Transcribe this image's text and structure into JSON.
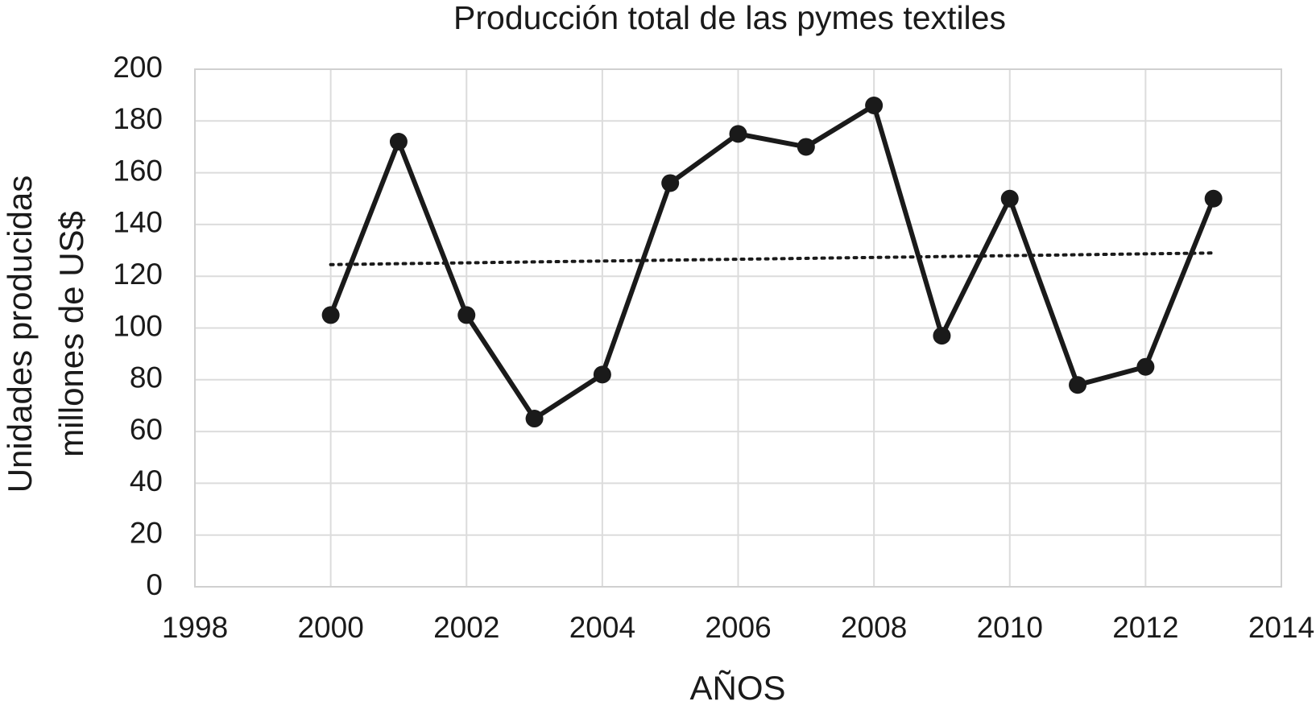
{
  "chart_data": {
    "type": "line",
    "title": "Producción total de las pymes textiles",
    "x_label": "AÑOS",
    "y_label": [
      "Unidades producidas",
      "millones de US$"
    ],
    "x": [
      2000,
      2001,
      2002,
      2003,
      2004,
      2005,
      2006,
      2007,
      2008,
      2009,
      2010,
      2011,
      2012,
      2013
    ],
    "series": [
      {
        "color": "#1a1a1a",
        "values": [
          105,
          172,
          105,
          65,
          82,
          156,
          175,
          170,
          186,
          97,
          150,
          78,
          85,
          150
        ]
      }
    ],
    "trendline": {
      "color": "#1a1a1a",
      "x": [
        2000,
        2013
      ],
      "values": [
        124.5,
        129
      ]
    },
    "xlim": [
      1998,
      2014
    ],
    "xticks": [
      1998,
      2000,
      2002,
      2004,
      2006,
      2008,
      2010,
      2012,
      2014
    ],
    "ylim": [
      0,
      200
    ],
    "yticks": [
      0,
      20,
      40,
      60,
      80,
      100,
      120,
      140,
      160,
      180,
      200
    ],
    "grid": true
  }
}
